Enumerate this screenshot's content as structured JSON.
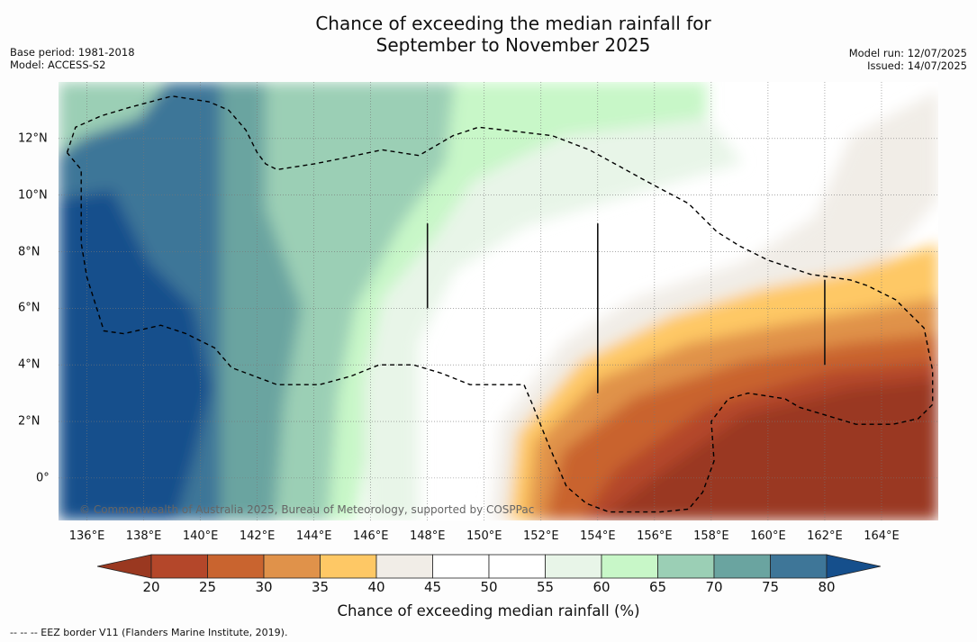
{
  "title": {
    "line1": "Chance of exceeding the median rainfall for",
    "line2": "September to November 2025"
  },
  "meta_left": {
    "base_period": "Base period: 1981-2018",
    "model": "Model: ACCESS-S2"
  },
  "meta_right": {
    "model_run": "Model run: 12/07/2025",
    "issued": "Issued: 14/07/2025"
  },
  "x_ticks": [
    "136°E",
    "138°E",
    "140°E",
    "142°E",
    "144°E",
    "146°E",
    "148°E",
    "150°E",
    "152°E",
    "154°E",
    "156°E",
    "158°E",
    "160°E",
    "162°E",
    "164°E"
  ],
  "y_ticks": [
    "12°N",
    "10°N",
    "8°N",
    "6°N",
    "4°N",
    "2°N",
    "0°"
  ],
  "copyright": "© Commonwealth of Australia 2025, Bureau of Meteorology, supported by COSPPac",
  "colorbar": {
    "ticks": [
      "20",
      "25",
      "30",
      "35",
      "40",
      "45",
      "50",
      "55",
      "60",
      "65",
      "70",
      "75",
      "80"
    ],
    "label": "Chance of exceeding median rainfall (%)",
    "colors": [
      "#9a3820",
      "#b4472a",
      "#c9642f",
      "#e0924a",
      "#fec865",
      "#f1ede7",
      "#ffffff",
      "#ffffff",
      "#e8f5e8",
      "#c8f7c8",
      "#9bcfb5",
      "#6aa4a0",
      "#3e7698",
      "#154f8c"
    ]
  },
  "legend_note": "--  --  -- EEZ border V11 (Flanders Marine Institute, 2019).",
  "chart_data": {
    "type": "map",
    "variable": "Chance of exceeding median rainfall (%)",
    "period": "September to November 2025",
    "lon_range": [
      135,
      166
    ],
    "lat_range": [
      -1.5,
      14
    ],
    "grid": true,
    "colorbar_levels": [
      20,
      25,
      30,
      35,
      40,
      45,
      50,
      55,
      60,
      65,
      70,
      75,
      80
    ],
    "eez_border": [
      [
        135.3,
        11.5
      ],
      [
        135.6,
        12.4
      ],
      [
        136.5,
        12.8
      ],
      [
        137.5,
        13.1
      ],
      [
        139,
        13.5
      ],
      [
        140.3,
        13.3
      ],
      [
        141,
        13
      ],
      [
        141.6,
        12.3
      ],
      [
        142,
        11.5
      ],
      [
        142.3,
        11.1
      ],
      [
        142.7,
        10.9
      ],
      [
        144,
        11.1
      ],
      [
        145,
        11.3
      ],
      [
        146.4,
        11.6
      ],
      [
        147.7,
        11.4
      ],
      [
        148.9,
        12.1
      ],
      [
        149.8,
        12.4
      ],
      [
        150.7,
        12.3
      ],
      [
        152.4,
        12.1
      ],
      [
        153.7,
        11.6
      ],
      [
        154.8,
        11.0
      ],
      [
        155.7,
        10.5
      ],
      [
        157.2,
        9.7
      ],
      [
        158.2,
        8.7
      ],
      [
        159,
        8.2
      ],
      [
        160,
        7.7
      ],
      [
        161.5,
        7.2
      ],
      [
        162.9,
        7.0
      ],
      [
        163.5,
        6.8
      ],
      [
        164.5,
        6.3
      ],
      [
        165.5,
        5.3
      ],
      [
        165.8,
        3.8
      ],
      [
        165.8,
        2.6
      ],
      [
        165.3,
        2.1
      ],
      [
        164.4,
        1.9
      ],
      [
        163.1,
        1.9
      ],
      [
        162.1,
        2.2
      ],
      [
        161.1,
        2.5
      ],
      [
        160.6,
        2.8
      ],
      [
        159.3,
        3.0
      ],
      [
        158.6,
        2.8
      ],
      [
        158.0,
        2.0
      ],
      [
        158.1,
        0.6
      ],
      [
        157.7,
        -0.5
      ],
      [
        157.2,
        -1.1
      ],
      [
        156.2,
        -1.2
      ],
      [
        155.3,
        -1.2
      ],
      [
        154.4,
        -1.2
      ],
      [
        153.6,
        -0.9
      ],
      [
        152.9,
        -0.3
      ],
      [
        152.3,
        1.1
      ],
      [
        151.7,
        2.6
      ],
      [
        151.4,
        3.3
      ],
      [
        150.8,
        3.3
      ],
      [
        149.5,
        3.3
      ],
      [
        148.5,
        3.7
      ],
      [
        147.5,
        4.0
      ],
      [
        146.3,
        4.0
      ],
      [
        145.3,
        3.6
      ],
      [
        144.2,
        3.3
      ],
      [
        142.7,
        3.3
      ],
      [
        141.1,
        3.9
      ],
      [
        140.5,
        4.6
      ],
      [
        139.5,
        5.1
      ],
      [
        138.6,
        5.4
      ],
      [
        137.3,
        5.1
      ],
      [
        136.6,
        5.2
      ],
      [
        136.0,
        7.1
      ],
      [
        135.8,
        8.3
      ],
      [
        135.8,
        9.2
      ],
      [
        135.8,
        10.0
      ],
      [
        135.8,
        10.9
      ],
      [
        135.3,
        11.5
      ]
    ],
    "vertical_markers": [
      {
        "lon": 148,
        "lat_from": 6.0,
        "lat_to": 9.0
      },
      {
        "lon": 154,
        "lat_from": 3.0,
        "lat_to": 9.0
      },
      {
        "lon": 162,
        "lat_from": 4.0,
        "lat_to": 7.0
      }
    ]
  }
}
